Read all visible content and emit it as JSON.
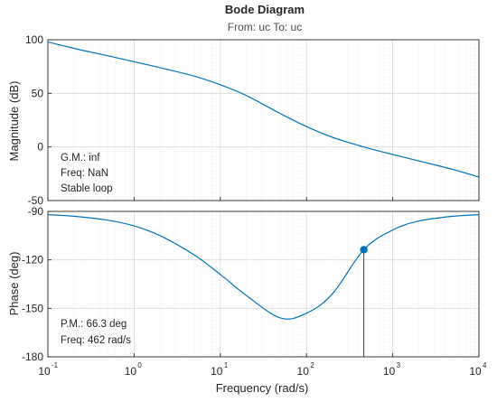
{
  "colors": {
    "curve": "#0072bd",
    "marker": "#0072bd",
    "marker_line": "#404040"
  },
  "chart_data": {
    "type": "line",
    "title": "Bode Diagram",
    "subtitle": "From: uc  To: uc",
    "xlabel": "Frequency  (rad/s)",
    "x_scale": "log",
    "xlim": [
      0.1,
      10000
    ],
    "x_ticks": [
      {
        "base": "10",
        "exp": "-1",
        "value": 0.1
      },
      {
        "base": "10",
        "exp": "0",
        "value": 1
      },
      {
        "base": "10",
        "exp": "1",
        "value": 10
      },
      {
        "base": "10",
        "exp": "2",
        "value": 100
      },
      {
        "base": "10",
        "exp": "3",
        "value": 1000
      },
      {
        "base": "10",
        "exp": "4",
        "value": 10000
      }
    ],
    "grid": true,
    "magnitude": {
      "ylabel": "Magnitude (dB)",
      "ylim": [
        -50,
        100
      ],
      "y_ticks": [
        "100",
        "50",
        "0",
        "-50"
      ],
      "series": [
        {
          "x": [
            0.1,
            0.2,
            0.5,
            1,
            2,
            5,
            10,
            20,
            50,
            100,
            200,
            462,
            1000,
            2000,
            5000,
            10000
          ],
          "y": [
            98,
            92,
            85,
            79.5,
            74,
            66,
            58,
            48,
            31,
            19,
            9,
            0,
            -7,
            -13,
            -21,
            -28
          ]
        }
      ],
      "annotations": [
        "G.M.: inf",
        "Freq: NaN",
        "Stable loop"
      ]
    },
    "phase": {
      "ylabel": "Phase (deg)",
      "ylim": [
        -180,
        -90
      ],
      "y_ticks": [
        "-90",
        "-120",
        "-150",
        "-180"
      ],
      "series": [
        {
          "x": [
            0.1,
            0.2,
            0.5,
            1,
            2,
            5,
            10,
            20,
            50,
            100,
            200,
            462,
            1000,
            2000,
            5000,
            10000
          ],
          "y": [
            -92,
            -93,
            -95.5,
            -99,
            -105,
            -117,
            -129,
            -142,
            -156,
            -153,
            -141,
            -113.7,
            -101.5,
            -96,
            -93,
            -92
          ]
        }
      ],
      "marker": {
        "x": 462,
        "y": -113.7
      },
      "annotations": [
        "P.M.: 66.3 deg",
        "Freq: 462 rad/s"
      ]
    }
  }
}
